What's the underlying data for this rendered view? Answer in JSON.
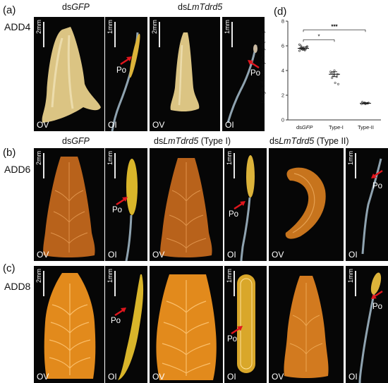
{
  "rows": [
    {
      "label": "(a)",
      "stage": "ADD4"
    },
    {
      "label": "(b)",
      "stage": "ADD6"
    },
    {
      "label": "(c)",
      "stage": "ADD8"
    }
  ],
  "headers": {
    "a_gfp_prefix": "ds",
    "a_gfp_italic": "GFP",
    "a_lm_prefix": "ds",
    "a_lm_italic": "LmTdrd5",
    "b_gfp_prefix": "ds",
    "b_gfp_italic": "GFP",
    "b_lm1_prefix": "ds",
    "b_lm1_italic": "LmTdrd5",
    "b_lm1_suffix": " (Type I)",
    "b_lm2_prefix": "ds",
    "b_lm2_italic": "LmTdrd5",
    "b_lm2_suffix": " (Type II)"
  },
  "scale": {
    "ovary": "2mm",
    "ovariole": "1mm"
  },
  "tags": {
    "ovary": "OV",
    "ovariole": "OI",
    "oocyte": "Po"
  },
  "colors": {
    "ovary_orange": "#e28a1c",
    "yolk": "#d9b52a",
    "background": "#060606",
    "arrow": "#e0161d"
  },
  "chart": {
    "panel_label": "(d)",
    "ylabel": "Length of Primary Oocyte(mm)",
    "yticks": [
      "0",
      "2",
      "4",
      "6",
      "8"
    ],
    "xticks": [
      "ds",
      "Type-I",
      "Type-II"
    ],
    "x0_italic": "GFP",
    "sig_outer": "***",
    "sig_inner": "*"
  },
  "chart_data": {
    "type": "scatter",
    "categories": [
      "dsGFP",
      "Type-I",
      "Type-II"
    ],
    "ylabel": "Length of Primary Oocyte(mm)",
    "ylim": [
      0,
      8
    ],
    "means": [
      5.8,
      3.7,
      1.35
    ],
    "errors": [
      0.1,
      0.2,
      0.05
    ],
    "series": [
      {
        "values": [
          5.6,
          5.7,
          5.75,
          5.8,
          5.85,
          5.9,
          6.0,
          5.7,
          5.95,
          5.8,
          5.65,
          6.1
        ]
      },
      {
        "values": [
          3.9,
          3.6,
          3.5,
          3.8,
          4.0,
          3.7,
          3.4,
          3.0,
          2.9,
          3.85
        ]
      },
      {
        "values": [
          1.3,
          1.4,
          1.35,
          1.45,
          1.3,
          1.38
        ]
      }
    ],
    "grid": false
  }
}
